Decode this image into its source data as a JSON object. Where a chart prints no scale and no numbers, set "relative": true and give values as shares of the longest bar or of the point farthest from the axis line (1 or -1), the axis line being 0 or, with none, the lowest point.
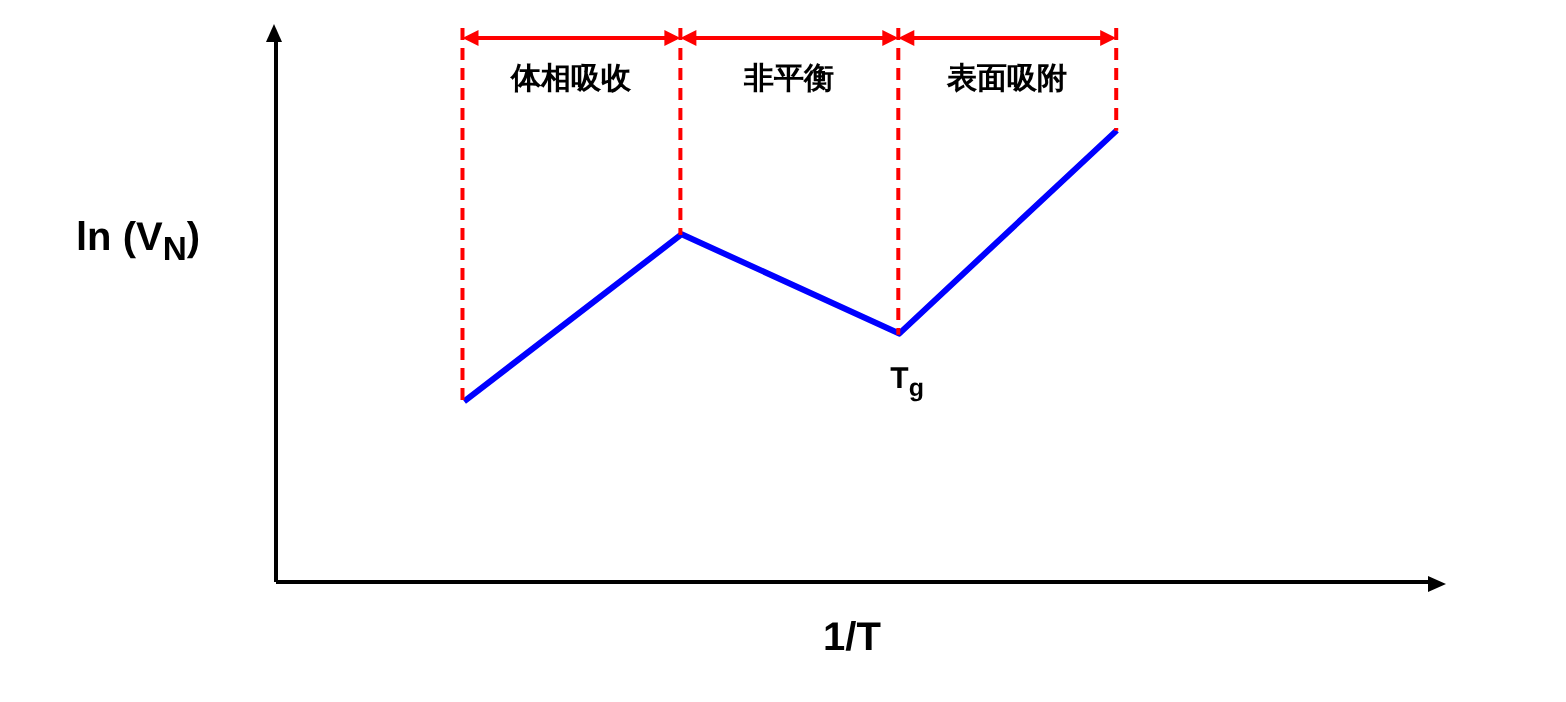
{
  "chart_data": {
    "type": "line",
    "relative": true,
    "xlabel": "1/T",
    "ylabel": "ln (V$_{N}$)",
    "categories": [
      null,
      null,
      null,
      null
    ],
    "series": [
      {
        "color": "#0000ff",
        "values": [
          0.4,
          0.77,
          0.55,
          1.0
        ]
      }
    ],
    "annotations": [
      "体相吸收",
      "非平衡",
      "表面吸附",
      "T$_{g}$"
    ],
    "marker": "none",
    "grid": false,
    "legend": false
  }
}
